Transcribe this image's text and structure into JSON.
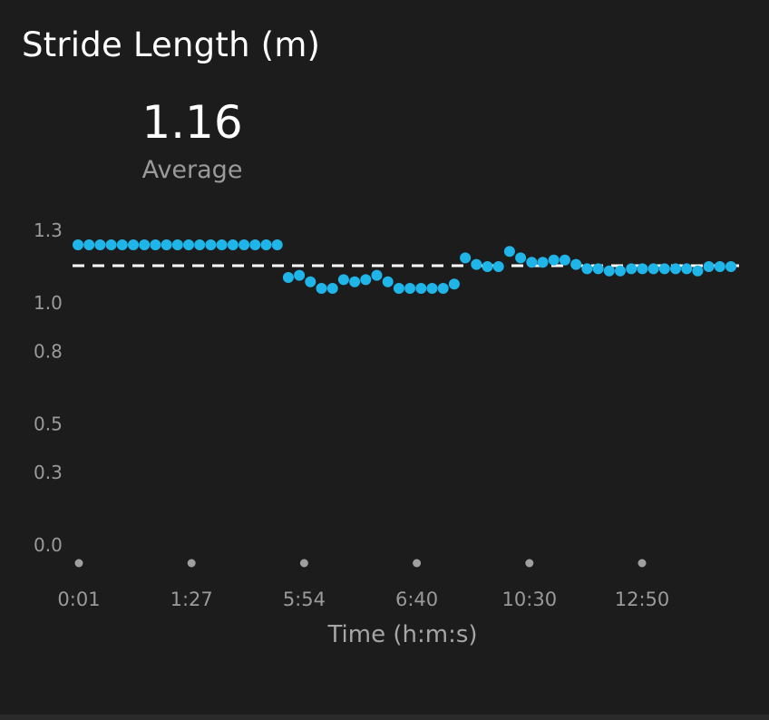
{
  "title": "Stride Length (m)",
  "average": {
    "value": "1.16",
    "label": "Average"
  },
  "colors": {
    "point": "#1fb5e9",
    "average_line": "#ffffff",
    "tick_dot": "#a0a0a0",
    "background": "#1c1c1c"
  },
  "chart_data": {
    "type": "scatter",
    "title": "Stride Length (m)",
    "xlabel": "Time (h:m:s)",
    "ylabel": "",
    "y_ticks": [
      "0.0",
      "0.3",
      "0.5",
      "0.8",
      "1.0",
      "1.3"
    ],
    "x_ticks": [
      "0:01",
      "1:27",
      "5:54",
      "6:40",
      "10:30",
      "12:50"
    ],
    "ylim": [
      0,
      1.3
    ],
    "grid": false,
    "average_line": 1.16,
    "series": [
      {
        "values": [
          1.23,
          1.23,
          1.23,
          1.23,
          1.23,
          1.23,
          1.23,
          1.23,
          1.23,
          1.23,
          1.23,
          1.23,
          1.23,
          1.23,
          1.23,
          1.23,
          1.23,
          1.23,
          1.23,
          1.08,
          1.09,
          1.06,
          1.03,
          1.03,
          1.07,
          1.06,
          1.07,
          1.09,
          1.06,
          1.03,
          1.03,
          1.03,
          1.03,
          1.03,
          1.05,
          1.17,
          1.14,
          1.13,
          1.13,
          1.2,
          1.17,
          1.15,
          1.15,
          1.16,
          1.16,
          1.14,
          1.12,
          1.12,
          1.11,
          1.11,
          1.12,
          1.12,
          1.12,
          1.12,
          1.12,
          1.12,
          1.11,
          1.13,
          1.13,
          1.13
        ]
      }
    ]
  }
}
